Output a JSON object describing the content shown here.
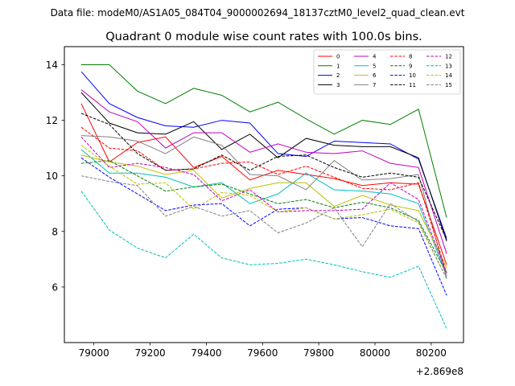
{
  "figure": {
    "suptitle": "Data file: modeM0/AS1A05_084T04_9000002694_18137cztM0_level2_quad_clean.evt"
  },
  "chart_data": {
    "type": "line",
    "title": "Quadrant 0 module wise count rates with 100.0s bins.",
    "xlabel": "",
    "ylabel": "",
    "x_offset_label": "+2.869e8",
    "xlim": [
      78895,
      80315
    ],
    "ylim": [
      4.0,
      14.65
    ],
    "x_ticks": [
      79000,
      79200,
      79400,
      79600,
      79800,
      80000,
      80200
    ],
    "x_tick_labels": [
      "79000",
      "79200",
      "79400",
      "79600",
      "79800",
      "80000",
      "80200"
    ],
    "y_ticks": [
      6,
      8,
      10,
      12,
      14
    ],
    "y_tick_labels": [
      "6",
      "8",
      "10",
      "12",
      "14"
    ],
    "legend_position": "top-right",
    "legend_columns": 4,
    "x": [
      78955,
      79055,
      79155,
      79255,
      79355,
      79455,
      79555,
      79655,
      79755,
      79855,
      79955,
      80055,
      80155,
      80255
    ],
    "series": [
      {
        "name": "0",
        "color": "#ff0000",
        "dash": "solid",
        "values": [
          12.6,
          10.5,
          11.2,
          11.4,
          10.3,
          10.7,
          9.85,
          10.2,
          10.05,
          9.9,
          9.65,
          9.75,
          9.7,
          6.8
        ]
      },
      {
        "name": "1",
        "color": "#008000",
        "dash": "solid",
        "values": [
          14.0,
          14.0,
          13.05,
          12.6,
          13.15,
          12.9,
          12.3,
          12.65,
          12.05,
          11.5,
          12.0,
          11.85,
          12.4,
          8.5
        ]
      },
      {
        "name": "2",
        "color": "#0000ff",
        "dash": "solid",
        "values": [
          13.75,
          12.6,
          12.1,
          11.8,
          11.75,
          12.0,
          11.9,
          10.8,
          10.7,
          11.25,
          11.2,
          11.15,
          10.6,
          7.75
        ]
      },
      {
        "name": "3",
        "color": "#000000",
        "dash": "solid",
        "values": [
          13.0,
          11.9,
          11.55,
          11.5,
          11.95,
          10.95,
          11.5,
          10.65,
          11.35,
          11.1,
          11.05,
          11.05,
          10.65,
          7.65
        ]
      },
      {
        "name": "4",
        "color": "#bf00bf",
        "dash": "solid",
        "values": [
          13.1,
          12.3,
          11.95,
          11.0,
          11.55,
          11.55,
          10.85,
          11.15,
          10.85,
          10.8,
          10.9,
          10.45,
          10.3,
          7.2
        ]
      },
      {
        "name": "5",
        "color": "#00bfbf",
        "dash": "solid",
        "values": [
          10.95,
          10.1,
          10.1,
          9.95,
          9.6,
          9.75,
          9.0,
          9.35,
          10.1,
          9.5,
          9.45,
          9.35,
          9.0,
          6.4
        ]
      },
      {
        "name": "6",
        "color": "#bfbf00",
        "dash": "solid",
        "values": [
          10.75,
          10.5,
          10.35,
          10.05,
          10.2,
          9.2,
          9.55,
          9.75,
          9.75,
          8.9,
          9.3,
          8.95,
          8.75,
          6.7
        ]
      },
      {
        "name": "7",
        "color": "#808080",
        "dash": "solid",
        "values": [
          11.45,
          11.4,
          11.25,
          10.8,
          11.4,
          11.1,
          10.05,
          10.0,
          9.5,
          10.55,
          9.85,
          9.9,
          10.05,
          6.3
        ]
      },
      {
        "name": "8",
        "color": "#ff0000",
        "dash": "dashed",
        "values": [
          11.75,
          11.0,
          10.9,
          10.2,
          10.25,
          10.45,
          10.5,
          10.05,
          10.35,
          9.95,
          9.55,
          9.5,
          9.75,
          6.5
        ]
      },
      {
        "name": "9",
        "color": "#008000",
        "dash": "dashed",
        "values": [
          10.45,
          10.55,
          10.0,
          9.45,
          9.6,
          9.7,
          9.35,
          9.0,
          9.15,
          8.85,
          9.05,
          8.85,
          8.4,
          6.5
        ]
      },
      {
        "name": "10",
        "color": "#0000ff",
        "dash": "dashed",
        "values": [
          10.65,
          9.95,
          9.35,
          8.75,
          8.95,
          9.0,
          8.2,
          8.8,
          8.85,
          8.45,
          8.5,
          8.2,
          8.1,
          5.7
        ]
      },
      {
        "name": "11",
        "color": "#000000",
        "dash": "dashed",
        "values": [
          12.25,
          11.85,
          10.8,
          10.2,
          10.25,
          10.75,
          10.2,
          10.7,
          10.75,
          10.3,
          9.95,
          10.1,
          9.95,
          7.7
        ]
      },
      {
        "name": "12",
        "color": "#bf00bf",
        "dash": "dashed",
        "values": [
          11.4,
          10.3,
          10.45,
          10.3,
          10.05,
          9.1,
          9.5,
          8.7,
          8.75,
          8.75,
          8.8,
          9.75,
          9.15,
          6.5
        ]
      },
      {
        "name": "13",
        "color": "#00bfbf",
        "dash": "dashed",
        "values": [
          9.45,
          8.05,
          7.4,
          7.05,
          7.9,
          7.05,
          6.8,
          6.85,
          7.0,
          6.8,
          6.55,
          6.35,
          6.75,
          4.5
        ]
      },
      {
        "name": "14",
        "color": "#bfbf00",
        "dash": "dashed",
        "values": [
          11.1,
          10.35,
          9.7,
          9.75,
          8.8,
          9.4,
          9.3,
          8.7,
          8.85,
          8.45,
          8.6,
          8.8,
          8.3,
          6.3
        ]
      },
      {
        "name": "15",
        "color": "#808080",
        "dash": "dashed",
        "values": [
          10.0,
          9.8,
          9.65,
          8.55,
          8.9,
          8.55,
          8.75,
          7.95,
          8.3,
          8.85,
          7.45,
          9.0,
          8.35,
          6.3
        ]
      }
    ]
  }
}
